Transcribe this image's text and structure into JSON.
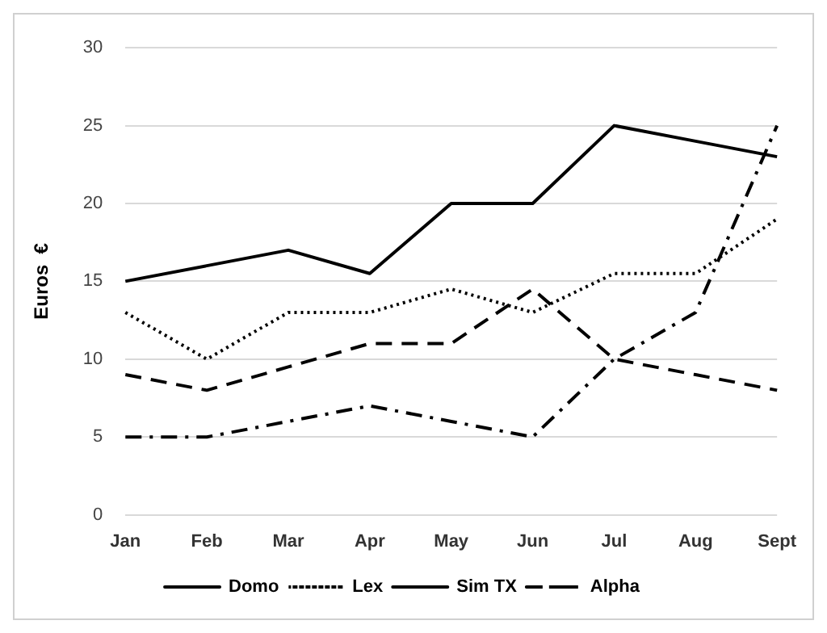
{
  "chart_data": {
    "type": "line",
    "ylabel": "Euros  €",
    "categories": [
      "Jan",
      "Feb",
      "Mar",
      "Apr",
      "May",
      "Jun",
      "Jul",
      "Aug",
      "Sept"
    ],
    "series": [
      {
        "name": "Domo",
        "color": "#000000",
        "line_style": "solid",
        "values": [
          15,
          16,
          17,
          15.5,
          20,
          20,
          25,
          24,
          23
        ]
      },
      {
        "name": "Lex",
        "color": "#000000",
        "line_style": "dotted",
        "values": [
          13,
          10,
          13,
          13,
          14.5,
          13,
          15.5,
          15.5,
          19
        ]
      },
      {
        "name": "Sim TX",
        "color": "#000000",
        "line_style": "dashed",
        "values": [
          9,
          8,
          9.5,
          11,
          11,
          14.5,
          10,
          9,
          8
        ]
      },
      {
        "name": "Alpha",
        "color": "#000000",
        "line_style": "dashdot",
        "values": [
          5,
          5,
          6,
          7,
          6,
          5,
          10,
          13,
          25
        ]
      }
    ],
    "ylim": [
      0,
      30
    ],
    "yticks": [
      0,
      5,
      10,
      15,
      20,
      25,
      30
    ],
    "grid": "y",
    "legend": "bottom",
    "marker": "none"
  }
}
